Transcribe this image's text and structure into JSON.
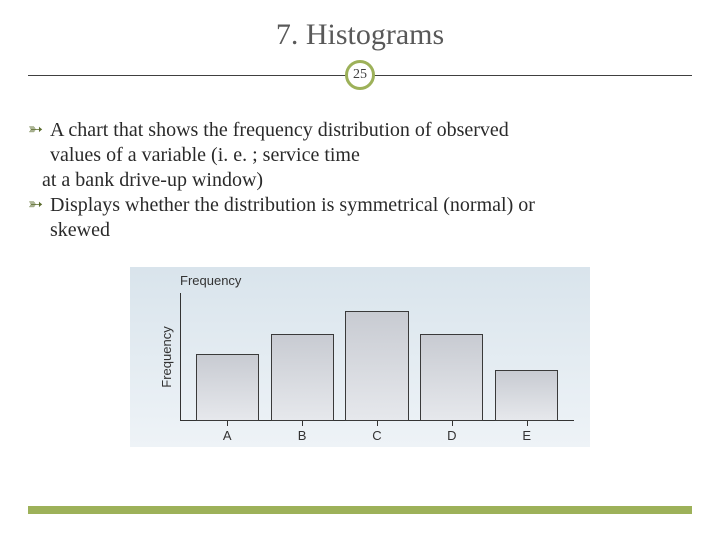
{
  "title": "7. Histograms",
  "page_number": "25",
  "accent_color": "#9db159",
  "text_color": "#2a2a2a",
  "title_color": "#595959",
  "bullets": [
    {
      "lead": "A chart that shows the frequency distribution of observed",
      "cont1": "values of a variable (i. e. ; service time",
      "cont2": "at a bank drive-up window)"
    },
    {
      "lead": "Displays whether the distribution is symmetrical (normal) or",
      "cont1": "skewed"
    }
  ],
  "histogram": {
    "type": "histogram",
    "title": "Frequency",
    "ylabel": "Frequency",
    "background_gradient": [
      "#d9e4ec",
      "#eef3f7"
    ],
    "axis_color": "#333333",
    "bar_fill_top": "#c8cbd2",
    "bar_fill_bottom": "#e6e8ec",
    "bar_border": "#3a3a3a",
    "categories": [
      "A",
      "B",
      "C",
      "D",
      "E"
    ],
    "values": [
      52,
      68,
      86,
      68,
      40
    ],
    "ylim": [
      0,
      100
    ],
    "bar_width_pct": 16,
    "gap_pct": 3,
    "left_pad_pct": 4,
    "label_fontsize": 13,
    "label_font": "Arial"
  }
}
